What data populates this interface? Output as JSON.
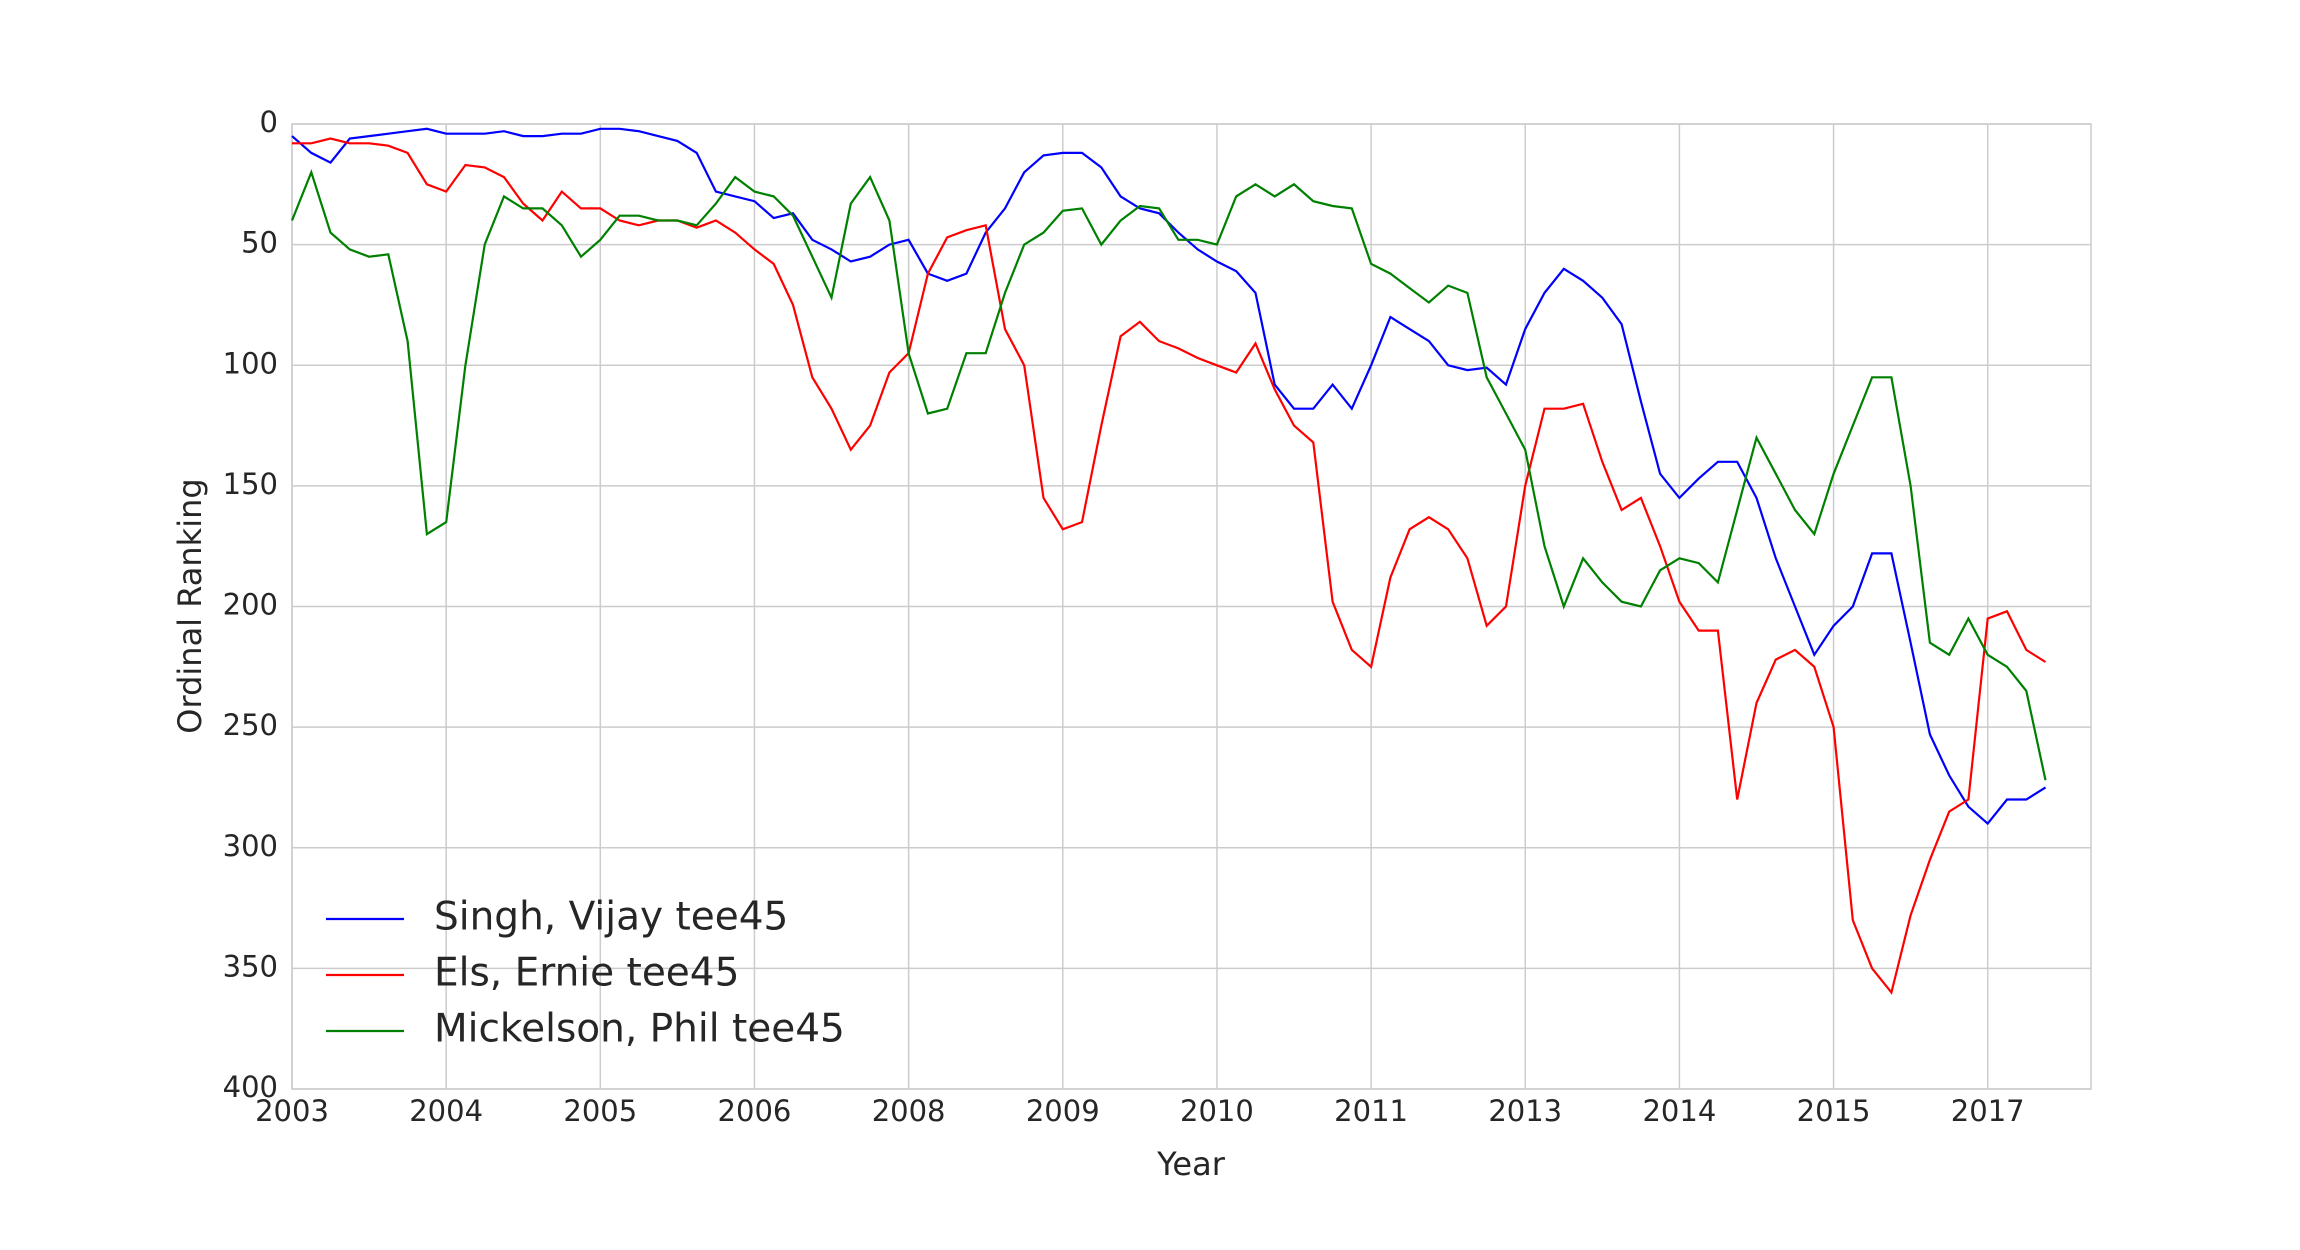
{
  "chart_data": {
    "type": "line",
    "xlabel": "Year",
    "ylabel": "Ordinal Ranking",
    "xlim": [
      0,
      11.67
    ],
    "ylim": [
      0,
      400
    ],
    "invert_y": true,
    "grid": true,
    "legend": "lower left",
    "xticks": [
      {
        "value": 0,
        "label": "2003"
      },
      {
        "value": 1,
        "label": "2004"
      },
      {
        "value": 2,
        "label": "2005"
      },
      {
        "value": 3,
        "label": "2006"
      },
      {
        "value": 4,
        "label": "2008"
      },
      {
        "value": 5,
        "label": "2009"
      },
      {
        "value": 6,
        "label": "2010"
      },
      {
        "value": 7,
        "label": "2011"
      },
      {
        "value": 8,
        "label": "2013"
      },
      {
        "value": 9,
        "label": "2014"
      },
      {
        "value": 10,
        "label": "2015"
      },
      {
        "value": 11,
        "label": "2017"
      }
    ],
    "yticks": [
      0,
      50,
      100,
      150,
      200,
      250,
      300,
      350,
      400
    ],
    "x": [
      0,
      0.125,
      0.25,
      0.375,
      0.5,
      0.625,
      0.75,
      0.875,
      1,
      1.125,
      1.25,
      1.375,
      1.5,
      1.625,
      1.75,
      1.875,
      2,
      2.125,
      2.25,
      2.375,
      2.5,
      2.625,
      2.75,
      2.875,
      3,
      3.125,
      3.25,
      3.375,
      3.5,
      3.625,
      3.75,
      3.875,
      4,
      4.125,
      4.25,
      4.375,
      4.5,
      4.625,
      4.75,
      4.875,
      5,
      5.125,
      5.25,
      5.375,
      5.5,
      5.625,
      5.75,
      5.875,
      6,
      6.125,
      6.25,
      6.375,
      6.5,
      6.625,
      6.75,
      6.875,
      7,
      7.125,
      7.25,
      7.375,
      7.5,
      7.625,
      7.75,
      7.875,
      8,
      8.125,
      8.25,
      8.375,
      8.5,
      8.625,
      8.75,
      8.875,
      9,
      9.125,
      9.25,
      9.375,
      9.5,
      9.625,
      9.75,
      9.875,
      10,
      10.125,
      10.25,
      10.375,
      10.5,
      10.625,
      10.75,
      10.875,
      11,
      11.125,
      11.25,
      11.375
    ],
    "series": [
      {
        "name": "Singh, Vijay tee45",
        "color": "#0000ff",
        "values": [
          5,
          12,
          16,
          6,
          5,
          4,
          3,
          2,
          4,
          4,
          4,
          3,
          5,
          5,
          4,
          4,
          2,
          2,
          3,
          5,
          7,
          12,
          28,
          30,
          32,
          39,
          37,
          48,
          52,
          57,
          55,
          50,
          48,
          62,
          65,
          62,
          45,
          35,
          20,
          13,
          12,
          12,
          18,
          30,
          35,
          37,
          45,
          52,
          57,
          61,
          70,
          108,
          118,
          118,
          108,
          118,
          100,
          80,
          85,
          90,
          100,
          102,
          101,
          108,
          85,
          70,
          60,
          65,
          72,
          83,
          115,
          145,
          155,
          147,
          140,
          140,
          155,
          180,
          200,
          220,
          208,
          200,
          178,
          178,
          215,
          253,
          270,
          283,
          290,
          280,
          280,
          275
        ]
      },
      {
        "name": "Els, Ernie tee45",
        "color": "#ff0000",
        "values": [
          8,
          8,
          6,
          8,
          8,
          9,
          12,
          25,
          28,
          17,
          18,
          22,
          33,
          40,
          28,
          35,
          35,
          40,
          42,
          40,
          40,
          43,
          40,
          45,
          52,
          58,
          75,
          105,
          118,
          135,
          125,
          103,
          95,
          62,
          47,
          44,
          42,
          85,
          100,
          155,
          168,
          165,
          125,
          88,
          82,
          90,
          93,
          97,
          100,
          103,
          91,
          110,
          125,
          132,
          198,
          218,
          225,
          188,
          168,
          163,
          168,
          180,
          208,
          200,
          150,
          118,
          118,
          116,
          140,
          160,
          155,
          175,
          198,
          210,
          210,
          280,
          240,
          222,
          218,
          225,
          250,
          330,
          350,
          360,
          328,
          305,
          285,
          280,
          205,
          202,
          218,
          223
        ]
      },
      {
        "name": "Mickelson, Phil tee45",
        "color": "#008000",
        "values": [
          40,
          20,
          45,
          52,
          55,
          54,
          90,
          170,
          165,
          100,
          50,
          30,
          35,
          35,
          42,
          55,
          48,
          38,
          38,
          40,
          40,
          42,
          33,
          22,
          28,
          30,
          38,
          55,
          72,
          33,
          22,
          40,
          95,
          120,
          118,
          95,
          95,
          70,
          50,
          45,
          36,
          35,
          50,
          40,
          34,
          35,
          48,
          48,
          50,
          30,
          25,
          30,
          25,
          32,
          34,
          35,
          58,
          62,
          68,
          74,
          67,
          70,
          105,
          120,
          135,
          175,
          200,
          180,
          190,
          198,
          200,
          185,
          180,
          182,
          190,
          160,
          130,
          145,
          160,
          170,
          145,
          125,
          105,
          105,
          150,
          215,
          220,
          205,
          220,
          225,
          235,
          272
        ]
      }
    ]
  }
}
